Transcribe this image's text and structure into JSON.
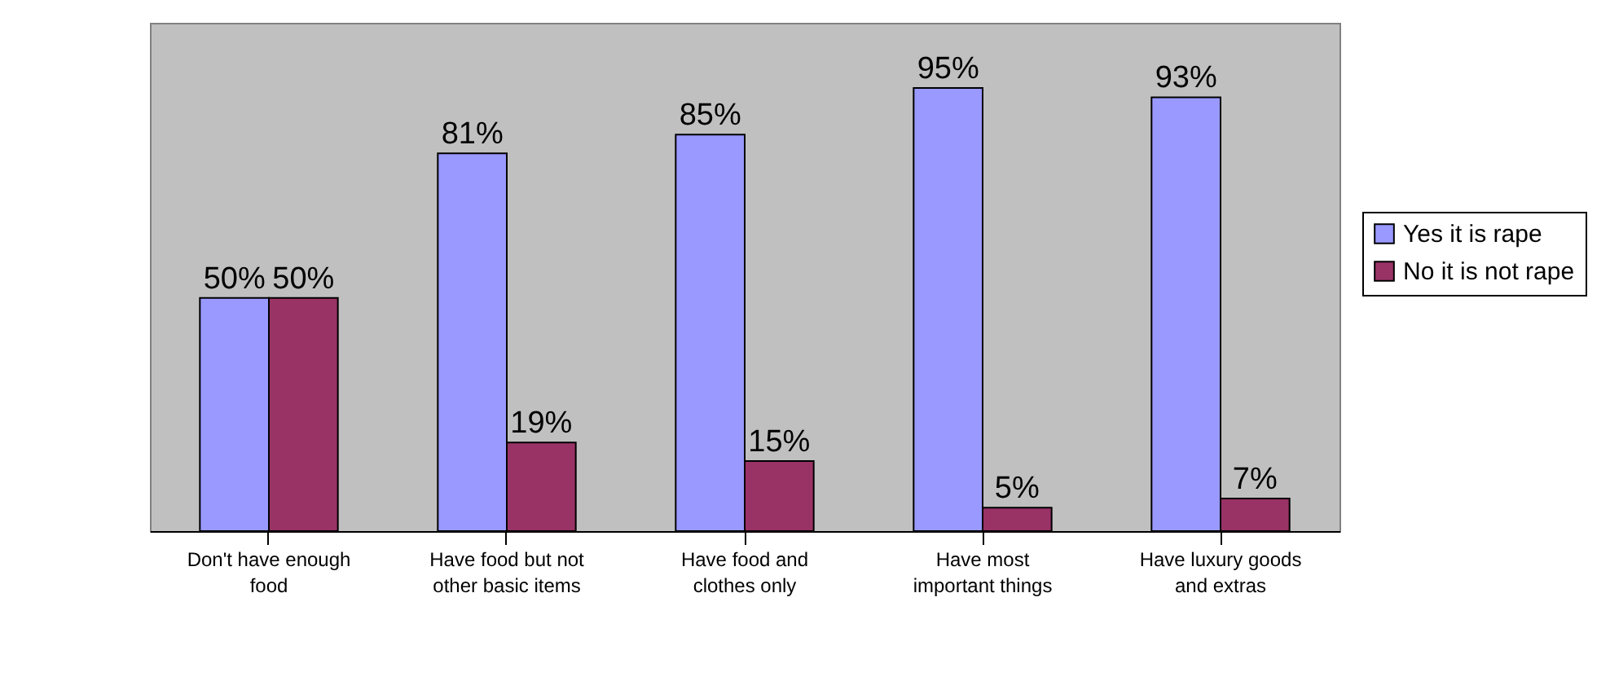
{
  "chart_data": {
    "type": "bar",
    "categories": [
      "Don't have enough food",
      "Have food but not other basic items",
      "Have food and clothes only",
      "Have most important things",
      "Have luxury goods and extras"
    ],
    "series": [
      {
        "name": "Yes it is rape",
        "color": "#9999ff",
        "values": [
          50,
          81,
          85,
          95,
          93
        ],
        "value_labels": [
          "50%",
          "81%",
          "85%",
          "95%",
          "93%"
        ]
      },
      {
        "name": "No it is not rape",
        "color": "#993366",
        "values": [
          50,
          19,
          15,
          5,
          7
        ],
        "value_labels": [
          "50%",
          "19%",
          "15%",
          "5%",
          "7%"
        ]
      }
    ],
    "legend": "right"
  }
}
